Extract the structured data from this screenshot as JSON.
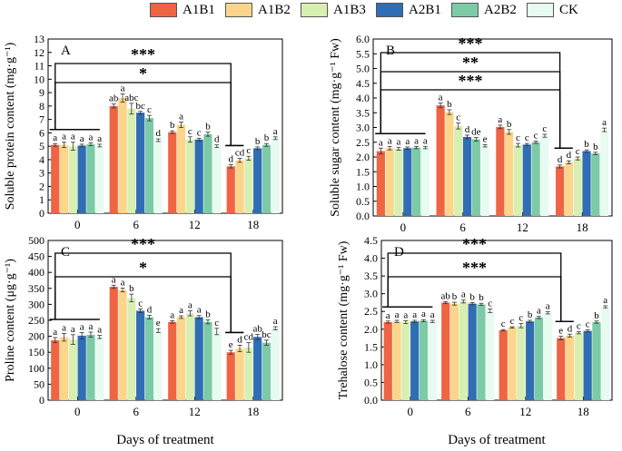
{
  "figure": {
    "legend": [
      "A1B1",
      "A1B2",
      "A1B3",
      "A2B1",
      "A2B2",
      "CK"
    ]
  },
  "colors": [
    "#ef6443",
    "#fbd58b",
    "#d8efb2",
    "#2f6db4",
    "#7ccaa6",
    "#e7fbf1"
  ],
  "chart_data": [
    {
      "type": "bar",
      "panel": "A",
      "ylabel": "Soluble protein content (mg·g⁻¹)",
      "xlabel": "",
      "categories": [
        "0",
        "6",
        "12",
        "18"
      ],
      "ylim": [
        0,
        13
      ],
      "yticks": [
        0,
        1,
        2,
        3,
        4,
        5,
        6,
        7,
        8,
        9,
        10,
        11,
        12,
        13
      ],
      "series": [
        {
          "name": "A1B1",
          "values": [
            5.1,
            8.0,
            6.05,
            3.5
          ],
          "errors": [
            0.1,
            0.15,
            0.1,
            0.12
          ],
          "letters": [
            "a",
            "ab",
            "b",
            "d"
          ]
        },
        {
          "name": "A1B2",
          "values": [
            5.1,
            8.6,
            6.6,
            3.95
          ],
          "errors": [
            0.2,
            0.3,
            0.2,
            0.15
          ],
          "letters": [
            "a",
            "a",
            "a",
            "cd"
          ]
        },
        {
          "name": "A1B3",
          "values": [
            5.0,
            7.8,
            5.5,
            4.1
          ],
          "errors": [
            0.3,
            0.4,
            0.2,
            0.15
          ],
          "letters": [
            "a",
            "abc",
            "c",
            "c"
          ]
        },
        {
          "name": "A2B1",
          "values": [
            5.05,
            7.5,
            5.5,
            4.85
          ],
          "errors": [
            0.1,
            0.1,
            0.1,
            0.1
          ],
          "letters": [
            "a",
            "bc",
            "c",
            "b"
          ]
        },
        {
          "name": "A2B2",
          "values": [
            5.15,
            7.1,
            5.9,
            5.1
          ],
          "errors": [
            0.1,
            0.2,
            0.15,
            0.1
          ],
          "letters": [
            "a",
            "c",
            "b",
            "b"
          ]
        },
        {
          "name": "CK",
          "values": [
            5.05,
            5.45,
            5.0,
            5.6
          ],
          "errors": [
            0.1,
            0.1,
            0.1,
            0.1
          ],
          "letters": [
            "a",
            "d",
            "d",
            "a"
          ]
        }
      ],
      "significance": [
        {
          "label": "***",
          "from": 0,
          "to": 3,
          "level": 1
        },
        {
          "label": "*",
          "from": 0,
          "to": 3,
          "level": 0
        }
      ]
    },
    {
      "type": "bar",
      "panel": "B",
      "ylabel": "Soluble sugar content (mg·g⁻¹ Fw)",
      "xlabel": "",
      "categories": [
        "0",
        "6",
        "12",
        "18"
      ],
      "ylim": [
        0,
        6
      ],
      "yticks": [
        "0.0",
        "0.5",
        "1.0",
        "1.5",
        "2.0",
        "2.5",
        "3.0",
        "3.5",
        "4.0",
        "4.5",
        "5.0",
        "5.5",
        "6.0"
      ],
      "series": [
        {
          "name": "A1B1",
          "values": [
            2.2,
            3.75,
            3.02,
            1.68
          ],
          "errors": [
            0.1,
            0.08,
            0.06,
            0.05
          ],
          "letters": [
            "a",
            "a",
            "a",
            "d"
          ]
        },
        {
          "name": "A1B2",
          "values": [
            2.3,
            3.52,
            2.85,
            1.82
          ],
          "errors": [
            0.06,
            0.08,
            0.08,
            0.05
          ],
          "letters": [
            "a",
            "b",
            "b",
            "d"
          ]
        },
        {
          "name": "A1B3",
          "values": [
            2.28,
            3.05,
            2.4,
            1.95
          ],
          "errors": [
            0.05,
            0.1,
            0.06,
            0.05
          ],
          "letters": [
            "a",
            "c",
            "c",
            "c"
          ]
        },
        {
          "name": "A2B1",
          "values": [
            2.3,
            2.68,
            2.42,
            2.2
          ],
          "errors": [
            0.04,
            0.06,
            0.04,
            0.04
          ],
          "letters": [
            "a",
            "d",
            "c",
            "b"
          ]
        },
        {
          "name": "A2B2",
          "values": [
            2.32,
            2.6,
            2.5,
            2.12
          ],
          "errors": [
            0.04,
            0.06,
            0.04,
            0.04
          ],
          "letters": [
            "a",
            "de",
            "c",
            "b"
          ]
        },
        {
          "name": "CK",
          "values": [
            2.32,
            2.38,
            2.72,
            2.92
          ],
          "errors": [
            0.04,
            0.04,
            0.05,
            0.06
          ],
          "letters": [
            "a",
            "e",
            "c",
            "a"
          ]
        }
      ],
      "significance": [
        {
          "label": "***",
          "from": 0,
          "to": 3,
          "level": 2
        },
        {
          "label": "**",
          "from": 0,
          "to": 3,
          "level": 1
        },
        {
          "label": "***",
          "from": 0,
          "to": 3,
          "level": 0
        }
      ]
    },
    {
      "type": "bar",
      "panel": "C",
      "ylabel": "Proline content (μg·g⁻¹)",
      "xlabel": "Days of treatment",
      "categories": [
        "0",
        "6",
        "12",
        "18"
      ],
      "ylim": [
        0,
        500
      ],
      "yticks": [
        0,
        50,
        100,
        150,
        200,
        250,
        300,
        350,
        400,
        450,
        500
      ],
      "series": [
        {
          "name": "A1B1",
          "values": [
            188,
            355,
            245,
            150
          ],
          "errors": [
            8,
            5,
            4,
            6
          ],
          "letters": [
            "a",
            "a",
            "a",
            "e"
          ]
        },
        {
          "name": "A1B2",
          "values": [
            197,
            345,
            260,
            162
          ],
          "errors": [
            12,
            6,
            4,
            10
          ],
          "letters": [
            "a",
            "a",
            "a",
            "d"
          ]
        },
        {
          "name": "A1B3",
          "values": [
            190,
            320,
            272,
            165
          ],
          "errors": [
            15,
            12,
            8,
            15
          ],
          "letters": [
            "a",
            "b",
            "a",
            "cd"
          ]
        },
        {
          "name": "A2B1",
          "values": [
            202,
            280,
            260,
            198
          ],
          "errors": [
            10,
            6,
            5,
            8
          ],
          "letters": [
            "a",
            "c",
            "a",
            "ab"
          ]
        },
        {
          "name": "A2B2",
          "values": [
            205,
            260,
            245,
            180
          ],
          "errors": [
            8,
            6,
            6,
            8
          ],
          "letters": [
            "a",
            "d",
            "b",
            "bc"
          ]
        },
        {
          "name": "CK",
          "values": [
            198,
            218,
            215,
            225
          ],
          "errors": [
            5,
            6,
            10,
            5
          ],
          "letters": [
            "a",
            "e",
            "c",
            "a"
          ]
        }
      ],
      "significance": [
        {
          "label": "***",
          "from": 0,
          "to": 3,
          "level": 1
        },
        {
          "label": "*",
          "from": 0,
          "to": 3,
          "level": 0
        }
      ]
    },
    {
      "type": "bar",
      "panel": "D",
      "ylabel": "Trehalose content (mg·g⁻¹ Fw)",
      "xlabel": "Days of treatment",
      "categories": [
        "0",
        "6",
        "12",
        "18"
      ],
      "ylim": [
        0,
        4.5
      ],
      "yticks": [
        "0.0",
        "0.5",
        "1.0",
        "1.5",
        "2.0",
        "2.5",
        "3.0",
        "3.5",
        "4.0",
        "4.5"
      ],
      "series": [
        {
          "name": "A1B1",
          "values": [
            2.2,
            2.75,
            1.97,
            1.75
          ],
          "errors": [
            0.03,
            0.03,
            0.02,
            0.05
          ],
          "letters": [
            "a",
            "ab",
            "c",
            "e"
          ]
        },
        {
          "name": "A1B2",
          "values": [
            2.22,
            2.72,
            2.05,
            1.82
          ],
          "errors": [
            0.03,
            0.04,
            0.02,
            0.04
          ],
          "letters": [
            "a",
            "b",
            "c",
            "d"
          ]
        },
        {
          "name": "A1B3",
          "values": [
            2.2,
            2.78,
            2.1,
            1.9
          ],
          "errors": [
            0.04,
            0.04,
            0.06,
            0.03
          ],
          "letters": [
            "a",
            "a",
            "c",
            "c"
          ]
        },
        {
          "name": "A2B1",
          "values": [
            2.22,
            2.72,
            2.22,
            1.95
          ],
          "errors": [
            0.03,
            0.03,
            0.03,
            0.03
          ],
          "letters": [
            "a",
            "b",
            "b",
            "c"
          ]
        },
        {
          "name": "A2B2",
          "values": [
            2.24,
            2.7,
            2.33,
            2.2
          ],
          "errors": [
            0.03,
            0.03,
            0.03,
            0.03
          ],
          "letters": [
            "a",
            "b",
            "a",
            "b"
          ]
        },
        {
          "name": "CK",
          "values": [
            2.22,
            2.52,
            2.46,
            2.63
          ],
          "errors": [
            0.03,
            0.05,
            0.03,
            0.03
          ],
          "letters": [
            "a",
            "c",
            "a",
            "a"
          ]
        }
      ],
      "significance": [
        {
          "label": "***",
          "from": 0,
          "to": 3,
          "level": 1
        },
        {
          "label": "***",
          "from": 0,
          "to": 3,
          "level": 0
        }
      ]
    }
  ]
}
